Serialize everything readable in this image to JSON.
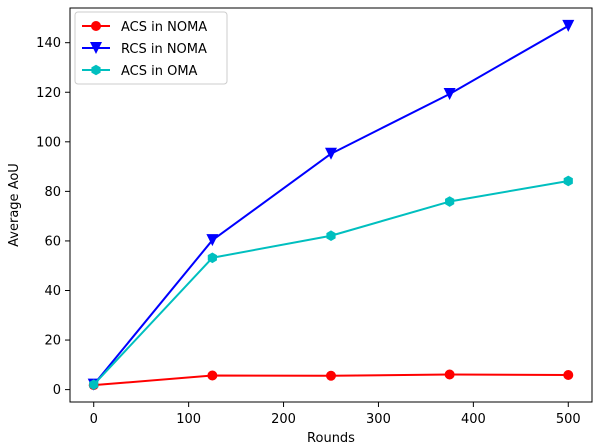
{
  "chart_data": {
    "type": "line",
    "title": "",
    "xlabel": "Rounds",
    "ylabel": "Average AoU",
    "xlim": [
      -25,
      525
    ],
    "ylim": [
      -5,
      154
    ],
    "x_ticks": [
      0,
      100,
      200,
      300,
      400,
      500
    ],
    "y_ticks": [
      0,
      20,
      40,
      60,
      80,
      100,
      120,
      140
    ],
    "grid": false,
    "legend_position": "top-left",
    "x": [
      0,
      125,
      250,
      375,
      500
    ],
    "series": [
      {
        "name": "ACS in NOMA",
        "color": "#ff0000",
        "marker": "circle",
        "values": [
          1.8,
          5.7,
          5.6,
          6.1,
          5.9
        ]
      },
      {
        "name": "RCS in NOMA",
        "color": "#0000ff",
        "marker": "triangle-down",
        "values": [
          2.0,
          60.3,
          95.2,
          119.3,
          146.8
        ]
      },
      {
        "name": "ACS in OMA",
        "color": "#00bfbf",
        "marker": "hexagon",
        "values": [
          2.0,
          53.2,
          62.1,
          75.9,
          84.2
        ]
      }
    ]
  }
}
